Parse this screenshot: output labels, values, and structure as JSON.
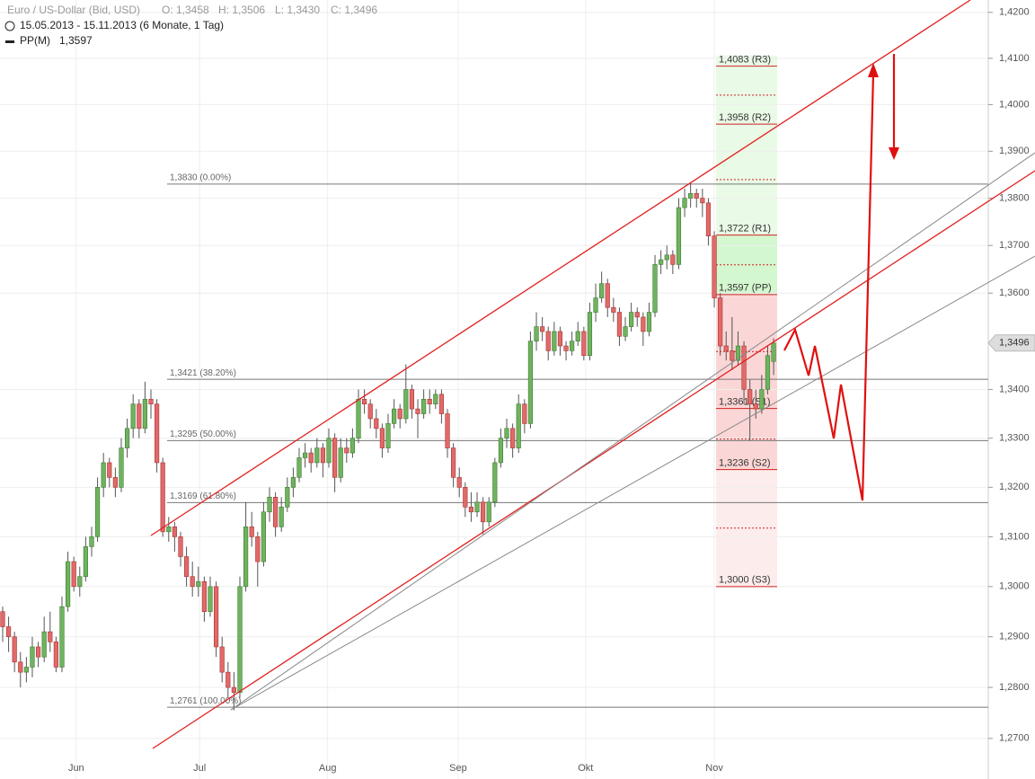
{
  "chart_data": {
    "type": "candlestick",
    "title": "Euro / US-Dollar (Bid, USD)",
    "summary": [
      "O: 1,3458",
      "H: 1,3506",
      "L: 1,3430",
      "C: 1,3496"
    ],
    "subtitle": "15.05.2013 - 15.11.2013 (6 Monate, 1 Tag)",
    "indicator": "PP(M)",
    "indicator_value": {
      "value": 1.3597,
      "label": "1,3597"
    },
    "log_scale": true,
    "grid": true,
    "up_color": "#6fb35f",
    "down_color": "#e06a6a",
    "xlim": [
      -0.45,
      166.2
    ],
    "xticks": [
      {
        "value": 12.4,
        "label": "Jun"
      },
      {
        "value": 33.2,
        "label": "Jul"
      },
      {
        "value": 54.8,
        "label": "Aug"
      },
      {
        "value": 76.8,
        "label": "Sep"
      },
      {
        "value": 98.3,
        "label": "Okt"
      },
      {
        "value": 120,
        "label": "Nov"
      }
    ],
    "ylim": [
      1.2621,
      1.4227
    ],
    "yticks": [
      {
        "value": 1.27,
        "label": "1,2700"
      },
      {
        "value": 1.28,
        "label": "1,2800"
      },
      {
        "value": 1.29,
        "label": "1,2900"
      },
      {
        "value": 1.3,
        "label": "1,3000"
      },
      {
        "value": 1.31,
        "label": "1,3100"
      },
      {
        "value": 1.32,
        "label": "1,3200"
      },
      {
        "value": 1.33,
        "label": "1,3300"
      },
      {
        "value": 1.34,
        "label": "1,3400"
      },
      {
        "value": 1.36,
        "label": "1,3600"
      },
      {
        "value": 1.37,
        "label": "1,3700"
      },
      {
        "value": 1.38,
        "label": "1,3800"
      },
      {
        "value": 1.39,
        "label": "1,3900"
      },
      {
        "value": 1.4,
        "label": "1,4000"
      },
      {
        "value": 1.41,
        "label": "1,4100"
      },
      {
        "value": 1.42,
        "label": "1,4200"
      }
    ],
    "last_price": {
      "value": 1.3496,
      "label": "1,3496"
    },
    "fib_levels": [
      {
        "value": 1.383,
        "label": "1,3830 (0.00%)"
      },
      {
        "value": 1.3421,
        "label": "1,3421 (38.20%)"
      },
      {
        "value": 1.3295,
        "label": "1,3295 (50.00%)"
      },
      {
        "value": 1.3169,
        "label": "1,3169 (61.80%)"
      },
      {
        "value": 1.2761,
        "label": "1,2761 (100.00%)"
      }
    ],
    "pivot_levels": [
      {
        "value": 1.4083,
        "label": "1,4083 (R3)"
      },
      {
        "value": 1.3958,
        "label": "1,3958 (R2)"
      },
      {
        "value": 1.3722,
        "label": "1,3722 (R1)"
      },
      {
        "value": 1.3597,
        "label": "1,3597 (PP)"
      },
      {
        "value": 1.3361,
        "label": "1,3361 (S1)"
      },
      {
        "value": 1.3236,
        "label": "1,3236 (S2)"
      },
      {
        "value": 1.3,
        "label": "1,3000 (S3)"
      }
    ],
    "candles": [
      [
        1.295,
        1.296,
        1.289,
        1.292
      ],
      [
        1.292,
        1.294,
        1.287,
        1.29
      ],
      [
        1.29,
        1.291,
        1.283,
        1.285
      ],
      [
        1.285,
        1.287,
        1.28,
        1.283
      ],
      [
        1.283,
        1.286,
        1.281,
        1.284
      ],
      [
        1.284,
        1.29,
        1.282,
        1.288
      ],
      [
        1.288,
        1.289,
        1.284,
        1.286
      ],
      [
        1.286,
        1.294,
        1.285,
        1.291
      ],
      [
        1.291,
        1.295,
        1.287,
        1.289
      ],
      [
        1.289,
        1.29,
        1.283,
        1.284
      ],
      [
        1.284,
        1.298,
        1.283,
        1.296
      ],
      [
        1.296,
        1.307,
        1.295,
        1.305
      ],
      [
        1.305,
        1.306,
        1.299,
        1.3
      ],
      [
        1.3,
        1.304,
        1.298,
        1.302
      ],
      [
        1.302,
        1.31,
        1.301,
        1.308
      ],
      [
        1.308,
        1.312,
        1.306,
        1.31
      ],
      [
        1.31,
        1.322,
        1.309,
        1.32
      ],
      [
        1.32,
        1.327,
        1.318,
        1.325
      ],
      [
        1.325,
        1.326,
        1.32,
        1.322
      ],
      [
        1.322,
        1.324,
        1.318,
        1.32
      ],
      [
        1.32,
        1.33,
        1.319,
        1.328
      ],
      [
        1.328,
        1.334,
        1.326,
        1.332
      ],
      [
        1.332,
        1.339,
        1.33,
        1.337
      ],
      [
        1.337,
        1.338,
        1.33,
        1.332
      ],
      [
        1.332,
        1.3416,
        1.331,
        1.338
      ],
      [
        1.338,
        1.34,
        1.334,
        1.337
      ],
      [
        1.337,
        1.338,
        1.323,
        1.325
      ],
      [
        1.325,
        1.326,
        1.31,
        1.311
      ],
      [
        1.311,
        1.314,
        1.309,
        1.312
      ],
      [
        1.312,
        1.313,
        1.307,
        1.31
      ],
      [
        1.31,
        1.311,
        1.304,
        1.306
      ],
      [
        1.306,
        1.308,
        1.3,
        1.302
      ],
      [
        1.302,
        1.305,
        1.298,
        1.3
      ],
      [
        1.3,
        1.304,
        1.298,
        1.301
      ],
      [
        1.301,
        1.302,
        1.293,
        1.295
      ],
      [
        1.295,
        1.302,
        1.294,
        1.3
      ],
      [
        1.3,
        1.301,
        1.286,
        1.288
      ],
      [
        1.288,
        1.29,
        1.281,
        1.283
      ],
      [
        1.283,
        1.285,
        1.278,
        1.28
      ],
      [
        1.28,
        1.283,
        1.2755,
        1.279
      ],
      [
        1.279,
        1.302,
        1.278,
        1.3
      ],
      [
        1.3,
        1.317,
        1.299,
        1.312
      ],
      [
        1.312,
        1.315,
        1.308,
        1.31
      ],
      [
        1.31,
        1.311,
        1.3,
        1.305
      ],
      [
        1.305,
        1.317,
        1.304,
        1.315
      ],
      [
        1.315,
        1.32,
        1.313,
        1.318
      ],
      [
        1.318,
        1.319,
        1.31,
        1.312
      ],
      [
        1.312,
        1.318,
        1.311,
        1.316
      ],
      [
        1.316,
        1.322,
        1.315,
        1.32
      ],
      [
        1.32,
        1.324,
        1.318,
        1.322
      ],
      [
        1.322,
        1.328,
        1.321,
        1.326
      ],
      [
        1.326,
        1.329,
        1.324,
        1.327
      ],
      [
        1.327,
        1.328,
        1.323,
        1.325
      ],
      [
        1.325,
        1.33,
        1.324,
        1.328
      ],
      [
        1.328,
        1.329,
        1.322,
        1.325
      ],
      [
        1.325,
        1.332,
        1.324,
        1.33
      ],
      [
        1.33,
        1.331,
        1.319,
        1.322
      ],
      [
        1.322,
        1.33,
        1.321,
        1.328
      ],
      [
        1.328,
        1.33,
        1.325,
        1.327
      ],
      [
        1.327,
        1.332,
        1.326,
        1.33
      ],
      [
        1.33,
        1.34,
        1.329,
        1.338
      ],
      [
        1.338,
        1.34,
        1.335,
        1.337
      ],
      [
        1.337,
        1.338,
        1.332,
        1.334
      ],
      [
        1.334,
        1.336,
        1.33,
        1.332
      ],
      [
        1.332,
        1.333,
        1.326,
        1.328
      ],
      [
        1.328,
        1.335,
        1.327,
        1.333
      ],
      [
        1.333,
        1.338,
        1.332,
        1.336
      ],
      [
        1.336,
        1.337,
        1.332,
        1.334
      ],
      [
        1.334,
        1.3452,
        1.333,
        1.34
      ],
      [
        1.34,
        1.341,
        1.334,
        1.336
      ],
      [
        1.336,
        1.338,
        1.33,
        1.335
      ],
      [
        1.335,
        1.34,
        1.334,
        1.338
      ],
      [
        1.338,
        1.34,
        1.335,
        1.337
      ],
      [
        1.337,
        1.34,
        1.336,
        1.339
      ],
      [
        1.339,
        1.34,
        1.333,
        1.335
      ],
      [
        1.335,
        1.336,
        1.326,
        1.328
      ],
      [
        1.328,
        1.329,
        1.32,
        1.322
      ],
      [
        1.322,
        1.324,
        1.318,
        1.32
      ],
      [
        1.32,
        1.321,
        1.314,
        1.316
      ],
      [
        1.316,
        1.319,
        1.313,
        1.315
      ],
      [
        1.315,
        1.319,
        1.314,
        1.317
      ],
      [
        1.317,
        1.318,
        1.3105,
        1.313
      ],
      [
        1.313,
        1.318,
        1.312,
        1.317
      ],
      [
        1.317,
        1.326,
        1.316,
        1.325
      ],
      [
        1.325,
        1.332,
        1.324,
        1.33
      ],
      [
        1.33,
        1.334,
        1.328,
        1.332
      ],
      [
        1.332,
        1.333,
        1.326,
        1.328
      ],
      [
        1.328,
        1.339,
        1.327,
        1.337
      ],
      [
        1.337,
        1.338,
        1.331,
        1.333
      ],
      [
        1.333,
        1.352,
        1.332,
        1.35
      ],
      [
        1.35,
        1.356,
        1.348,
        1.353
      ],
      [
        1.353,
        1.355,
        1.35,
        1.352
      ],
      [
        1.352,
        1.353,
        1.346,
        1.348
      ],
      [
        1.348,
        1.354,
        1.347,
        1.352
      ],
      [
        1.352,
        1.353,
        1.347,
        1.349
      ],
      [
        1.349,
        1.35,
        1.346,
        1.348
      ],
      [
        1.348,
        1.352,
        1.347,
        1.35
      ],
      [
        1.35,
        1.354,
        1.349,
        1.352
      ],
      [
        1.352,
        1.353,
        1.346,
        1.347
      ],
      [
        1.347,
        1.358,
        1.346,
        1.356
      ],
      [
        1.356,
        1.362,
        1.354,
        1.359
      ],
      [
        1.359,
        1.3645,
        1.358,
        1.362
      ],
      [
        1.362,
        1.363,
        1.355,
        1.357
      ],
      [
        1.357,
        1.359,
        1.354,
        1.356
      ],
      [
        1.356,
        1.357,
        1.349,
        1.351
      ],
      [
        1.351,
        1.355,
        1.35,
        1.353
      ],
      [
        1.353,
        1.358,
        1.352,
        1.356
      ],
      [
        1.356,
        1.357,
        1.353,
        1.355
      ],
      [
        1.355,
        1.356,
        1.349,
        1.352
      ],
      [
        1.352,
        1.358,
        1.351,
        1.356
      ],
      [
        1.356,
        1.368,
        1.355,
        1.366
      ],
      [
        1.366,
        1.369,
        1.364,
        1.367
      ],
      [
        1.367,
        1.37,
        1.365,
        1.368
      ],
      [
        1.368,
        1.369,
        1.364,
        1.366
      ],
      [
        1.366,
        1.38,
        1.365,
        1.378
      ],
      [
        1.378,
        1.382,
        1.376,
        1.38
      ],
      [
        1.38,
        1.3832,
        1.378,
        1.381
      ],
      [
        1.381,
        1.382,
        1.378,
        1.38
      ],
      [
        1.38,
        1.382,
        1.376,
        1.379
      ],
      [
        1.379,
        1.38,
        1.37,
        1.372
      ],
      [
        1.372,
        1.373,
        1.357,
        1.359
      ],
      [
        1.359,
        1.36,
        1.347,
        1.349
      ],
      [
        1.349,
        1.352,
        1.346,
        1.348
      ],
      [
        1.348,
        1.355,
        1.344,
        1.346
      ],
      [
        1.346,
        1.352,
        1.345,
        1.349
      ],
      [
        1.349,
        1.35,
        1.337,
        1.34
      ],
      [
        1.34,
        1.342,
        1.3295,
        1.337
      ],
      [
        1.337,
        1.34,
        1.334,
        1.336
      ],
      [
        1.336,
        1.343,
        1.335,
        1.34
      ],
      [
        1.34,
        1.349,
        1.339,
        1.347
      ],
      [
        1.3458,
        1.3506,
        1.343,
        1.3496
      ]
    ]
  }
}
